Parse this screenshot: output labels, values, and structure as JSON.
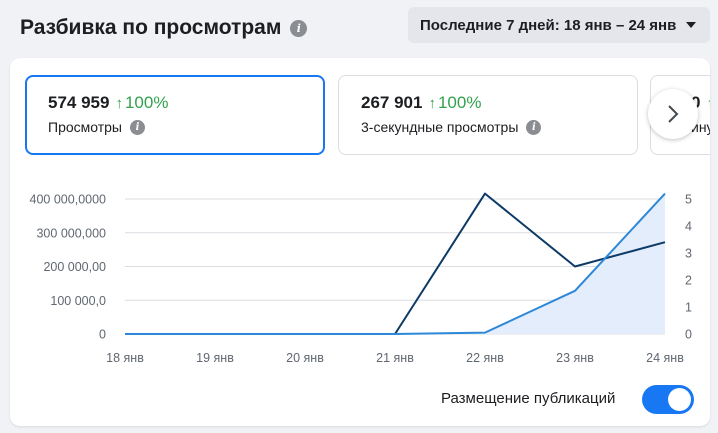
{
  "header": {
    "title": "Разбивка по просмотрам",
    "date_range": "Последние 7 дней: 18 янв – 24 янв"
  },
  "metrics": [
    {
      "value": "574 959",
      "change": "100%",
      "label": "Просмотры",
      "selected": true
    },
    {
      "value": "267 901",
      "change": "100%",
      "label": "3-секундные просмотры",
      "selected": false
    },
    {
      "value": "0",
      "change": "",
      "label": "ину",
      "selected": false
    }
  ],
  "toggle": {
    "label": "Размещение публикаций",
    "on": true
  },
  "colors": {
    "accent": "#1877f2",
    "positive": "#31a24c",
    "dark_series": "#0d3a66",
    "light_series": "#2d88d8",
    "fill": "#e3edfb"
  },
  "chart_data": {
    "type": "line",
    "x": [
      "18 янв",
      "19 янв",
      "20 янв",
      "21 янв",
      "22 янв",
      "23 янв",
      "24 янв"
    ],
    "y_left_ticks": [
      "400 000,0000",
      "300 000,000",
      "200 000,00",
      "100 000,0",
      "0"
    ],
    "y_right_ticks": [
      "5",
      "4",
      "3",
      "2",
      "1",
      "0"
    ],
    "y_right_range": [
      0,
      5
    ],
    "series": [
      {
        "axis": "right",
        "color": "#0d3a66",
        "values": [
          0,
          0,
          0,
          0,
          5.2,
          2.5,
          3.4
        ]
      },
      {
        "axis": "right",
        "color": "#2d88d8",
        "values": [
          0,
          0,
          0,
          0,
          0.05,
          1.6,
          5.2
        ],
        "area": true
      }
    ],
    "grid": true
  }
}
